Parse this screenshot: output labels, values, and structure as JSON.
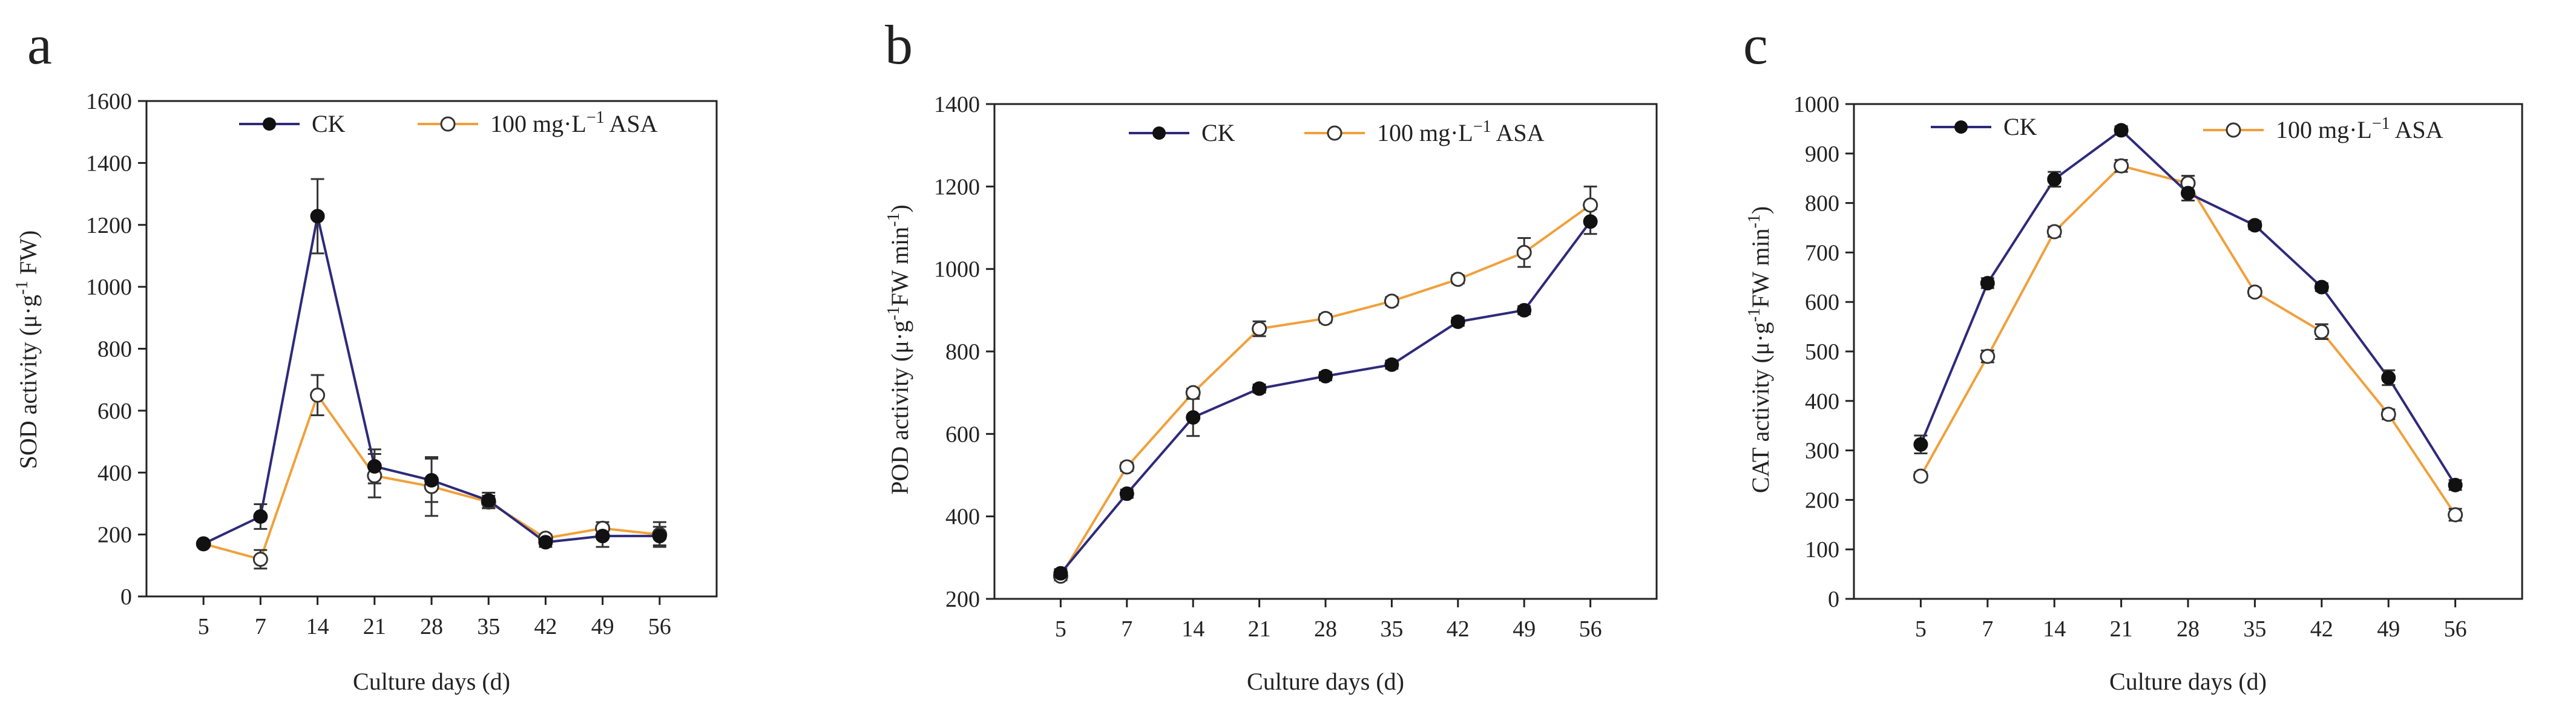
{
  "colors": {
    "ck": "#2e2a7a",
    "asa": "#f0a03c",
    "axis": "#222222"
  },
  "chart_data": [
    {
      "panel": "a",
      "type": "line",
      "xlabel": "Culture days (d)",
      "ylabel": "SOD activity (μ·g",
      "ylabel_sup": "-1",
      "ylabel_tail": " FW)",
      "categories": [
        "5",
        "7",
        "14",
        "21",
        "28",
        "35",
        "42",
        "49",
        "56"
      ],
      "ylim": [
        0,
        1600
      ],
      "yticks": [
        0,
        200,
        400,
        600,
        800,
        1000,
        1200,
        1400,
        1600
      ],
      "legend": {
        "placement": "top",
        "ck": "CK",
        "asa": "100 mg·L",
        "asa_sup": "−1",
        "asa_tail": " ASA"
      },
      "series": [
        {
          "name": "CK",
          "values": [
            170,
            258,
            1228,
            420,
            375,
            310,
            175,
            195,
            195
          ],
          "errors": [
            8,
            40,
            120,
            55,
            70,
            25,
            15,
            35,
            30
          ]
        },
        {
          "name": "100 mg·L−1 ASA",
          "values": [
            170,
            120,
            650,
            390,
            355,
            305,
            188,
            220,
            200
          ],
          "errors": [
            8,
            30,
            65,
            70,
            95,
            20,
            12,
            20,
            40
          ]
        }
      ]
    },
    {
      "panel": "b",
      "type": "line",
      "xlabel": "Culture days (d)",
      "ylabel": "POD activity (μ·g",
      "ylabel_sup": "-1",
      "ylabel_tail": "FW min",
      "ylabel_sup2": "-1",
      "ylabel_end": ")",
      "categories": [
        "5",
        "7",
        "14",
        "21",
        "28",
        "35",
        "42",
        "49",
        "56"
      ],
      "ylim": [
        200,
        1400
      ],
      "yticks": [
        200,
        400,
        600,
        800,
        1000,
        1200,
        1400
      ],
      "legend": {
        "placement": "top",
        "ck": "CK",
        "asa": "100 mg·L",
        "asa_sup": "−1",
        "asa_tail": " ASA"
      },
      "series": [
        {
          "name": "CK",
          "values": [
            262,
            455,
            640,
            710,
            740,
            768,
            872,
            900,
            1115
          ],
          "errors": [
            10,
            10,
            45,
            10,
            10,
            10,
            10,
            10,
            30
          ]
        },
        {
          "name": "100 mg·L−1 ASA",
          "values": [
            255,
            520,
            700,
            855,
            880,
            922,
            975,
            1040,
            1155
          ],
          "errors": [
            10,
            10,
            10,
            18,
            10,
            10,
            10,
            35,
            45
          ]
        }
      ]
    },
    {
      "panel": "c",
      "type": "line",
      "xlabel": "Culture days (d)",
      "ylabel": "CAT activity (μ·g",
      "ylabel_sup": "-1",
      "ylabel_tail": "FW min",
      "ylabel_sup2": "-1",
      "ylabel_end": ")",
      "categories": [
        "5",
        "7",
        "14",
        "21",
        "28",
        "35",
        "42",
        "49",
        "56"
      ],
      "ylim": [
        0,
        1000
      ],
      "yticks": [
        0,
        100,
        200,
        300,
        400,
        500,
        600,
        700,
        800,
        900,
        1000
      ],
      "legend": {
        "placement": "top",
        "ck": "CK",
        "asa": "100 mg·L",
        "asa_sup": "−1",
        "asa_tail": " ASA"
      },
      "series": [
        {
          "name": "CK",
          "values": [
            312,
            638,
            848,
            947,
            820,
            755,
            630,
            447,
            230
          ],
          "errors": [
            18,
            10,
            15,
            8,
            15,
            8,
            8,
            15,
            10
          ]
        },
        {
          "name": "100 mg·L−1 ASA",
          "values": [
            248,
            490,
            742,
            875,
            840,
            620,
            540,
            373,
            170
          ],
          "errors": [
            8,
            12,
            10,
            12,
            15,
            8,
            15,
            10,
            12
          ]
        }
      ]
    }
  ]
}
